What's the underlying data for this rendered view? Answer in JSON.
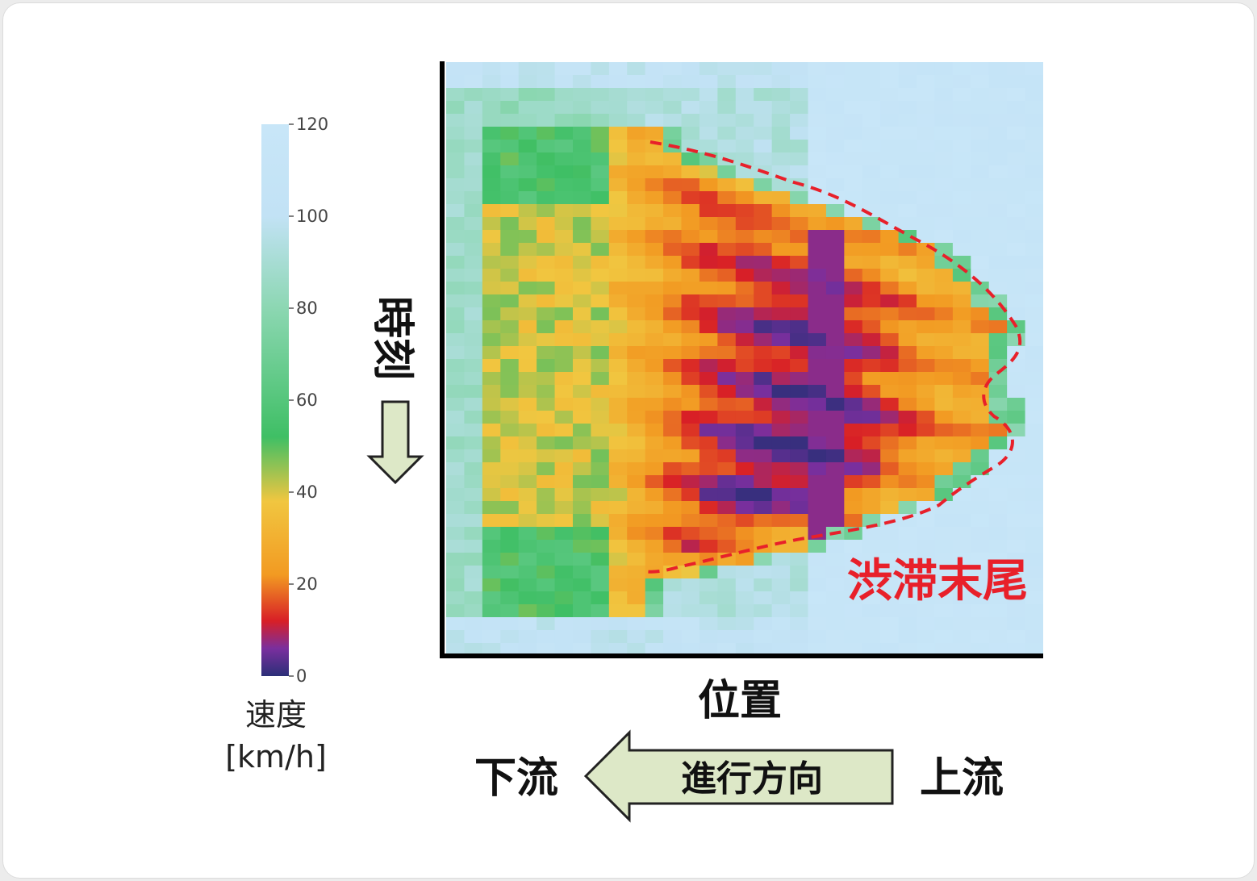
{
  "chart_data": {
    "type": "heatmap",
    "title": "",
    "xlabel": "位置",
    "ylabel": "時刻",
    "colorbar": {
      "label": "速度",
      "unit": "[km/h]",
      "range": [
        0,
        120
      ],
      "ticks": [
        0,
        20,
        40,
        60,
        80,
        100,
        120
      ],
      "stops": [
        {
          "v": 0,
          "color": "#2b2f78"
        },
        {
          "v": 6,
          "color": "#7a2f9e"
        },
        {
          "v": 12,
          "color": "#d81f26"
        },
        {
          "v": 22,
          "color": "#f29a22"
        },
        {
          "v": 38,
          "color": "#f1c640"
        },
        {
          "v": 52,
          "color": "#3fbf65"
        },
        {
          "v": 80,
          "color": "#8cd7b2"
        },
        {
          "v": 100,
          "color": "#c2e2f5"
        },
        {
          "v": 120,
          "color": "#c8e6f8"
        }
      ]
    },
    "grid_columns": 33,
    "grid_rows": 46,
    "congestion_profile": [
      {
        "row": 6,
        "tail_column": 11,
        "min_speed": 28
      },
      {
        "row": 10,
        "tail_column": 18,
        "min_speed": 20
      },
      {
        "row": 14,
        "tail_column": 26,
        "min_speed": 14
      },
      {
        "row": 20,
        "tail_column": 30,
        "min_speed": 8
      },
      {
        "row": 23,
        "tail_column": 29,
        "min_speed": 10
      },
      {
        "row": 28,
        "tail_column": 30,
        "min_speed": 5
      },
      {
        "row": 33,
        "tail_column": 26,
        "min_speed": 6
      },
      {
        "row": 37,
        "tail_column": 19,
        "min_speed": 18
      },
      {
        "row": 40,
        "tail_column": 10,
        "min_speed": 28
      }
    ],
    "annotations": {
      "congestion_tail": "渋滞末尾",
      "downstream": "下流",
      "direction": "進行方向",
      "upstream": "上流"
    },
    "colors": {
      "tail_outline": "#e8202a",
      "arrow_fill": "#dde8c7",
      "arrow_stroke": "#222222"
    }
  }
}
